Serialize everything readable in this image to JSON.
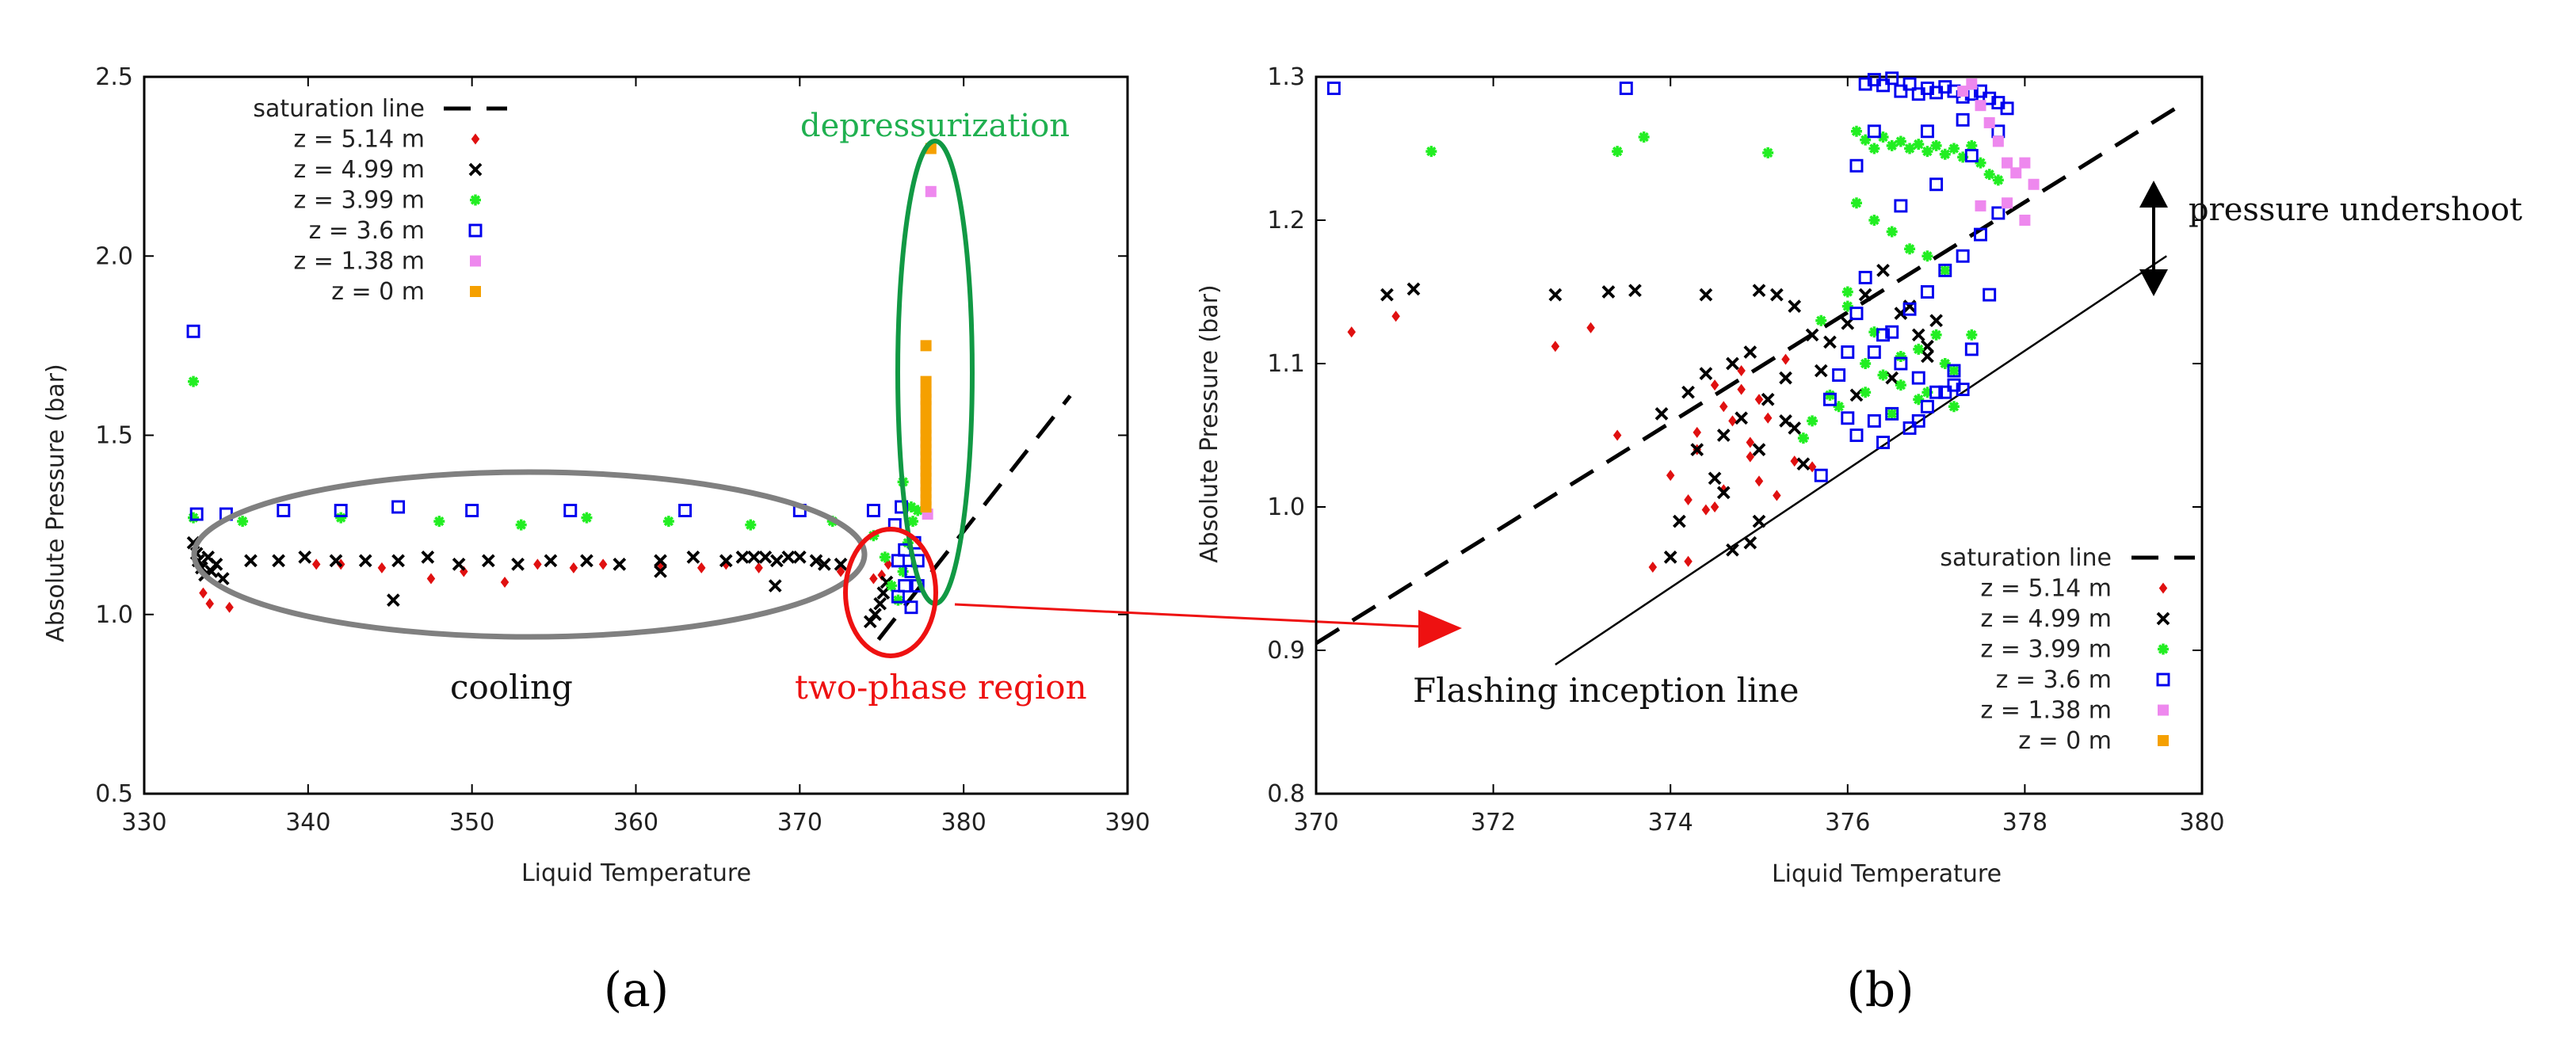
{
  "colors": {
    "z514": "#e01010",
    "z499": "#000000",
    "z399": "#22ee22",
    "z36": "#0000ee",
    "z138": "#ee88ee",
    "z0": "#f5a000",
    "cooling_ellipse": "#808080",
    "depress_ellipse": "#119944",
    "twophase_ellipse": "#ee1111",
    "depress_text": "#20b050",
    "twophase_text": "#ee1111"
  },
  "series_labels": {
    "sat": "saturation line",
    "z514": "z = 5.14 m",
    "z499": "z = 4.99 m",
    "z399": "z = 3.99 m",
    "z36": "z = 3.6 m",
    "z138": "z = 1.38 m",
    "z0": "z = 0 m"
  },
  "panel_labels": {
    "a": "(a)",
    "b": "(b)"
  },
  "chart_data": [
    {
      "type": "scatter",
      "panel": "a",
      "title": "",
      "xlabel": "Liquid Temperature",
      "ylabel": "Absolute Pressure (bar)",
      "xlim": [
        330,
        390
      ],
      "ylim": [
        0.5,
        2.5
      ],
      "xticks": [
        330,
        340,
        350,
        360,
        370,
        380,
        390
      ],
      "yticks": [
        0.5,
        1.0,
        1.5,
        2.0,
        2.5
      ],
      "xtick_labels": [
        "330",
        "340",
        "350",
        "360",
        "370",
        "380",
        "390"
      ],
      "ytick_labels": [
        "0.5",
        "1.0",
        "1.5",
        "2.0",
        "2.5"
      ],
      "legend": "top-left",
      "saturation_line": [
        [
          374.8,
          0.93
        ],
        [
          386.5,
          1.61
        ]
      ],
      "annotations": {
        "depressurization": "depressurization",
        "cooling": "cooling",
        "two_phase": "two-phase region"
      },
      "series": [
        {
          "key": "z514",
          "x": [
            333.3,
            333.6,
            334.0,
            335.2,
            340.5,
            342.0,
            344.5,
            347.5,
            349.5,
            352.0,
            354.0,
            356.2,
            358.0,
            361.5,
            364.0,
            365.5,
            367.5,
            372.5,
            374.5,
            375.0,
            375.4
          ],
          "y": [
            1.14,
            1.06,
            1.03,
            1.02,
            1.14,
            1.14,
            1.13,
            1.1,
            1.12,
            1.09,
            1.14,
            1.13,
            1.14,
            1.14,
            1.13,
            1.14,
            1.13,
            1.12,
            1.1,
            1.11,
            1.14
          ]
        },
        {
          "key": "z499",
          "x": [
            333.0,
            333.2,
            333.3,
            333.5,
            333.7,
            333.9,
            334.1,
            334.4,
            334.8,
            336.5,
            338.2,
            339.8,
            341.7,
            343.5,
            345.5,
            347.3,
            349.2,
            351.0,
            352.8,
            354.8,
            357.0,
            359.0,
            361.5,
            363.5,
            365.5,
            366.5,
            367.2,
            367.9,
            368.6,
            369.3,
            370.0,
            371.0,
            372.5,
            374.3,
            374.6,
            374.9,
            375.1,
            375.3,
            345.2,
            361.5,
            368.5,
            371.5
          ],
          "y": [
            1.2,
            1.17,
            1.15,
            1.13,
            1.11,
            1.16,
            1.12,
            1.14,
            1.1,
            1.15,
            1.15,
            1.16,
            1.15,
            1.15,
            1.15,
            1.16,
            1.14,
            1.15,
            1.14,
            1.15,
            1.15,
            1.14,
            1.15,
            1.16,
            1.15,
            1.16,
            1.16,
            1.16,
            1.15,
            1.16,
            1.16,
            1.15,
            1.14,
            0.98,
            1.0,
            1.03,
            1.06,
            1.09,
            1.04,
            1.12,
            1.08,
            1.14
          ]
        },
        {
          "key": "z399",
          "x": [
            333.0,
            333.0,
            336.0,
            342.0,
            348.0,
            353.0,
            357.0,
            362.0,
            367.0,
            372.0,
            374.5,
            375.2,
            375.6,
            376.0,
            376.3,
            376.6,
            376.9,
            377.2,
            376.3,
            376.8
          ],
          "y": [
            1.65,
            1.27,
            1.26,
            1.27,
            1.26,
            1.25,
            1.27,
            1.26,
            1.25,
            1.26,
            1.22,
            1.16,
            1.08,
            1.04,
            1.12,
            1.2,
            1.26,
            1.29,
            1.37,
            1.3
          ]
        },
        {
          "key": "z36",
          "x": [
            333.0,
            333.2,
            335.0,
            338.5,
            342.0,
            345.5,
            350.0,
            356.0,
            363.0,
            370.0,
            374.5,
            376.0,
            376.0,
            376.4,
            376.4,
            376.8,
            376.8,
            377.2,
            377.2,
            375.8,
            377.0,
            376.2
          ],
          "y": [
            1.79,
            1.28,
            1.28,
            1.29,
            1.29,
            1.3,
            1.29,
            1.29,
            1.29,
            1.29,
            1.29,
            1.15,
            1.05,
            1.18,
            1.08,
            1.12,
            1.02,
            1.15,
            1.08,
            1.25,
            1.2,
            1.3
          ]
        },
        {
          "key": "z138",
          "x": [
            378.0,
            377.8
          ],
          "y": [
            2.18,
            1.28
          ]
        },
        {
          "key": "z0",
          "x": [
            378.0,
            377.7,
            377.7,
            377.7,
            377.7,
            377.7,
            377.7,
            377.7,
            377.7,
            377.7,
            377.7,
            377.7,
            377.7,
            377.7,
            377.7,
            377.7,
            377.7,
            377.7,
            377.7
          ],
          "y": [
            2.3,
            1.75,
            1.65,
            1.62,
            1.6,
            1.58,
            1.55,
            1.52,
            1.5,
            1.48,
            1.46,
            1.44,
            1.42,
            1.4,
            1.38,
            1.36,
            1.34,
            1.32,
            1.3
          ]
        }
      ]
    },
    {
      "type": "scatter",
      "panel": "b",
      "title": "",
      "xlabel": "Liquid Temperature",
      "ylabel": "Absolute Pressure (bar)",
      "xlim": [
        370,
        380
      ],
      "ylim": [
        0.8,
        1.3
      ],
      "xticks": [
        370,
        372,
        374,
        376,
        378,
        380
      ],
      "yticks": [
        0.8,
        0.9,
        1.0,
        1.1,
        1.2,
        1.3
      ],
      "xtick_labels": [
        "370",
        "372",
        "374",
        "376",
        "378",
        "380"
      ],
      "ytick_labels": [
        "0.8",
        "0.9",
        "1.0",
        "1.1",
        "1.2",
        "1.3"
      ],
      "legend": "bottom-right",
      "saturation_line": [
        [
          370.0,
          0.905
        ],
        [
          379.7,
          1.278
        ]
      ],
      "flashing_inception_line": [
        [
          372.7,
          0.89
        ],
        [
          379.6,
          1.175
        ]
      ],
      "annotations": {
        "flashing": "Flashing inception line",
        "undershoot": "pressure undershoot"
      },
      "series": [
        {
          "key": "z514",
          "x": [
            370.4,
            370.9,
            372.7,
            373.1,
            373.4,
            374.0,
            374.2,
            374.3,
            374.5,
            374.6,
            374.8,
            374.9,
            375.0,
            375.1,
            375.3,
            374.4,
            374.6,
            374.9,
            375.2,
            374.3,
            374.7,
            375.0,
            375.4,
            374.5,
            374.8,
            373.8,
            374.2,
            375.6
          ],
          "y": [
            1.122,
            1.133,
            1.112,
            1.125,
            1.05,
            1.022,
            1.005,
            1.052,
            1.0,
            1.07,
            1.082,
            1.035,
            1.018,
            1.062,
            1.103,
            0.998,
            1.012,
            1.045,
            1.008,
            1.04,
            1.06,
            1.075,
            1.032,
            1.085,
            1.095,
            0.958,
            0.962,
            1.028
          ]
        },
        {
          "key": "z499",
          "x": [
            370.8,
            371.1,
            372.7,
            373.3,
            373.6,
            374.0,
            374.4,
            374.7,
            374.9,
            375.0,
            375.2,
            375.4,
            375.6,
            375.8,
            376.0,
            376.2,
            376.4,
            376.6,
            376.8,
            376.9,
            377.0,
            374.3,
            374.6,
            374.8,
            375.1,
            375.3,
            374.5,
            375.0,
            375.5,
            376.5,
            376.9,
            373.9,
            374.2,
            374.4,
            374.7,
            374.9,
            375.3,
            375.7,
            376.1,
            376.7,
            374.1,
            374.6,
            375.0,
            375.4
          ],
          "y": [
            1.148,
            1.152,
            1.148,
            1.15,
            1.151,
            0.965,
            1.148,
            0.97,
            0.975,
            1.151,
            1.148,
            1.14,
            1.12,
            1.115,
            1.128,
            1.148,
            1.165,
            1.135,
            1.12,
            1.105,
            1.13,
            1.04,
            1.05,
            1.062,
            1.075,
            1.09,
            1.02,
            0.99,
            1.03,
            1.09,
            1.112,
            1.065,
            1.08,
            1.093,
            1.1,
            1.108,
            1.06,
            1.095,
            1.078,
            1.14,
            0.99,
            1.01,
            1.04,
            1.055
          ]
        },
        {
          "key": "z399",
          "x": [
            371.3,
            373.4,
            373.7,
            375.1,
            375.5,
            375.8,
            376.0,
            376.1,
            376.2,
            376.3,
            376.4,
            376.5,
            376.6,
            376.7,
            376.8,
            376.9,
            377.0,
            377.1,
            377.2,
            377.3,
            377.4,
            377.5,
            377.6,
            377.7,
            376.1,
            376.3,
            376.5,
            376.7,
            376.9,
            377.1,
            376.2,
            376.4,
            376.6,
            376.8,
            377.0,
            377.2,
            375.6,
            375.9,
            376.2,
            376.5,
            376.8,
            377.1,
            377.4,
            375.7,
            376.0,
            376.3,
            376.6,
            376.9,
            377.2
          ],
          "y": [
            1.248,
            1.248,
            1.258,
            1.247,
            1.048,
            1.078,
            1.15,
            1.262,
            1.256,
            1.25,
            1.258,
            1.252,
            1.255,
            1.25,
            1.253,
            1.248,
            1.252,
            1.246,
            1.25,
            1.244,
            1.252,
            1.24,
            1.232,
            1.228,
            1.212,
            1.2,
            1.192,
            1.18,
            1.175,
            1.165,
            1.1,
            1.092,
            1.085,
            1.11,
            1.12,
            1.095,
            1.06,
            1.07,
            1.08,
            1.065,
            1.075,
            1.1,
            1.12,
            1.13,
            1.14,
            1.122,
            1.105,
            1.08,
            1.07
          ]
        },
        {
          "key": "z36",
          "x": [
            370.2,
            373.5,
            375.7,
            376.0,
            376.1,
            376.2,
            376.3,
            376.4,
            376.5,
            376.6,
            376.7,
            376.8,
            376.9,
            377.0,
            377.1,
            377.2,
            377.3,
            377.4,
            377.5,
            377.6,
            377.7,
            377.8,
            376.3,
            376.5,
            376.7,
            376.9,
            377.1,
            377.3,
            377.5,
            377.7,
            376.2,
            376.4,
            376.6,
            376.8,
            377.0,
            377.2,
            377.4,
            376.1,
            376.3,
            376.5,
            376.7,
            376.9,
            377.1,
            377.3,
            375.9,
            376.0,
            376.4,
            376.8,
            377.2,
            377.6,
            376.6,
            377.0,
            377.4,
            376.1,
            375.8,
            376.3,
            376.9,
            377.3,
            377.7
          ],
          "y": [
            1.292,
            1.292,
            1.022,
            1.062,
            1.238,
            1.295,
            1.298,
            1.294,
            1.299,
            1.29,
            1.295,
            1.288,
            1.292,
            1.289,
            1.293,
            1.29,
            1.286,
            1.288,
            1.29,
            1.285,
            1.282,
            1.278,
            1.108,
            1.122,
            1.138,
            1.15,
            1.165,
            1.175,
            1.19,
            1.205,
            1.16,
            1.12,
            1.1,
            1.09,
            1.08,
            1.095,
            1.11,
            1.05,
            1.06,
            1.065,
            1.055,
            1.07,
            1.08,
            1.082,
            1.092,
            1.108,
            1.045,
            1.06,
            1.085,
            1.148,
            1.21,
            1.225,
            1.245,
            1.135,
            1.075,
            1.262,
            1.262,
            1.27,
            1.262
          ]
        },
        {
          "key": "z138",
          "x": [
            377.4,
            377.5,
            377.6,
            377.7,
            377.8,
            377.9,
            378.0,
            378.1,
            377.3,
            377.5,
            377.8,
            378.0
          ],
          "y": [
            1.295,
            1.28,
            1.268,
            1.255,
            1.24,
            1.233,
            1.24,
            1.225,
            1.29,
            1.21,
            1.212,
            1.2
          ]
        }
      ]
    }
  ]
}
